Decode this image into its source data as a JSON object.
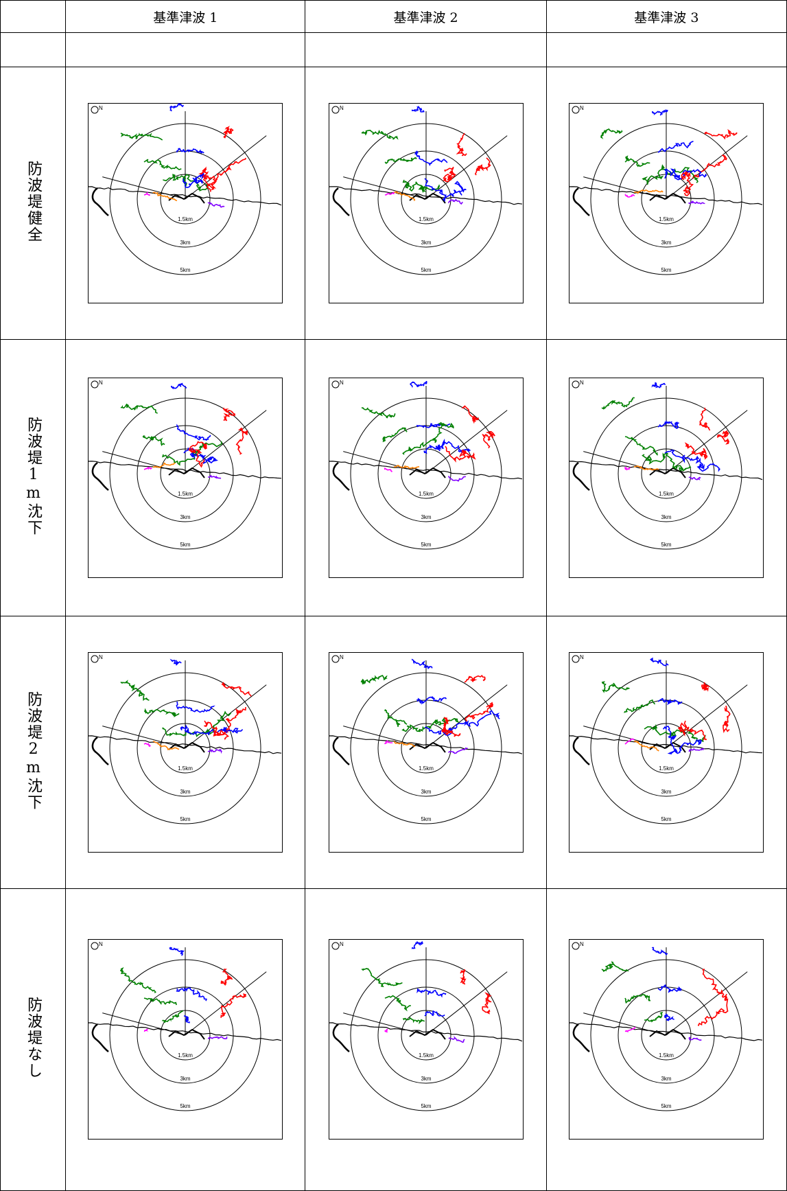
{
  "columns": [
    "基準津波 1",
    "基準津波 2",
    "基準津波 3"
  ],
  "rows": [
    {
      "label": "防波堤健全"
    },
    {
      "label": "防波堤1m沈下"
    },
    {
      "label": "防波堤2m沈下"
    },
    {
      "label": "防波堤なし"
    }
  ],
  "ring_labels": [
    "1.5km",
    "3km",
    "5km"
  ],
  "compass_label": "N",
  "colors": {
    "red": "#ff0000",
    "blue": "#0000ff",
    "green": "#008000",
    "orange": "#ff8000",
    "magenta": "#ff00ff",
    "purple": "#8000ff",
    "black": "#000000"
  }
}
